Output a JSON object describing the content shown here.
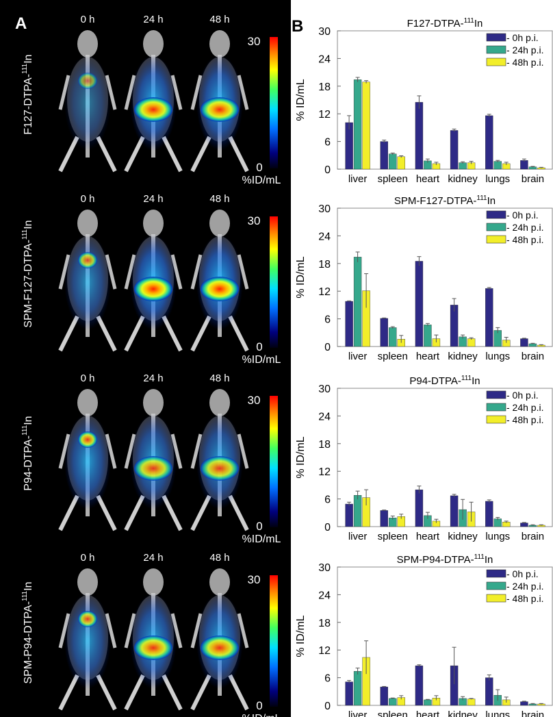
{
  "panel_a": {
    "label": "A",
    "times": [
      "0 h",
      "24 h",
      "48 h"
    ],
    "rows": [
      {
        "label_main": "F127-DTPA-",
        "label_sup": "111",
        "label_end": "In"
      },
      {
        "label_main": "SPM-F127-DTPA-",
        "label_sup": "111",
        "label_end": "In"
      },
      {
        "label_main": "P94-DTPA-",
        "label_sup": "111",
        "label_end": "In"
      },
      {
        "label_main": "SPM-P94-DTPA-",
        "label_sup": "111",
        "label_end": "In"
      }
    ],
    "colorbar": {
      "max": "30",
      "min": "0",
      "unit": "%ID/mL"
    },
    "colors": {
      "background": "#000000",
      "bone": "#d8d8d8"
    }
  },
  "panel_b": {
    "label": "B",
    "ylabel": "% ID/mL",
    "legend": [
      "- 0h p.i.",
      "- 24h p.i.",
      "- 48h p.i."
    ],
    "colors": [
      "#2e2a86",
      "#35a88c",
      "#f2ee2a"
    ],
    "grid": false,
    "legend_position": "top-right"
  },
  "chart_data": [
    {
      "type": "bar",
      "title_main": "F127-DTPA-",
      "title_sup": "111",
      "title_end": "In",
      "categories": [
        "liver",
        "spleen",
        "heart",
        "kidney",
        "lungs",
        "brain"
      ],
      "ylim": [
        0,
        30
      ],
      "yticks": [
        "0",
        "6",
        "12",
        "18",
        "24",
        "30"
      ],
      "series": [
        {
          "name": "- 0h p.i.",
          "values": [
            10.1,
            6.0,
            14.5,
            8.4,
            11.6,
            1.9
          ],
          "errors": [
            1.5,
            0.3,
            1.4,
            0.3,
            0.3,
            0.3
          ]
        },
        {
          "name": "- 24h p.i.",
          "values": [
            19.4,
            3.3,
            1.8,
            1.4,
            1.7,
            0.5
          ],
          "errors": [
            0.5,
            0.2,
            0.4,
            0.2,
            0.2,
            0.1
          ]
        },
        {
          "name": "- 48h p.i.",
          "values": [
            18.9,
            2.7,
            1.2,
            1.4,
            1.2,
            0.3
          ],
          "errors": [
            0.3,
            0.2,
            0.3,
            0.3,
            0.3,
            0.1
          ]
        }
      ]
    },
    {
      "type": "bar",
      "title_main": "SPM-F127-DTPA-",
      "title_sup": "111",
      "title_end": "In",
      "categories": [
        "liver",
        "spleen",
        "heart",
        "kidney",
        "lungs",
        "brain"
      ],
      "ylim": [
        0,
        30
      ],
      "yticks": [
        "0",
        "6",
        "12",
        "18",
        "24",
        "30"
      ],
      "series": [
        {
          "name": "- 0h p.i.",
          "values": [
            9.8,
            6.1,
            18.5,
            9.0,
            12.6,
            1.7
          ],
          "errors": [
            0.1,
            0.1,
            1.0,
            1.4,
            0.2,
            0.1
          ]
        },
        {
          "name": "- 24h p.i.",
          "values": [
            19.4,
            4.1,
            4.7,
            2.1,
            3.5,
            0.6
          ],
          "errors": [
            1.1,
            0.2,
            0.3,
            0.4,
            0.6,
            0.1
          ]
        },
        {
          "name": "- 48h p.i.",
          "values": [
            12.1,
            1.6,
            1.7,
            1.7,
            1.4,
            0.3
          ],
          "errors": [
            3.7,
            0.8,
            0.8,
            0.2,
            0.6,
            0.1
          ]
        }
      ]
    },
    {
      "type": "bar",
      "title_main": "P94-DTPA-",
      "title_sup": "111",
      "title_end": "In",
      "categories": [
        "liver",
        "spleen",
        "heart",
        "kidney",
        "lungs",
        "brain"
      ],
      "ylim": [
        0,
        30
      ],
      "yticks": [
        "0",
        "6",
        "12",
        "18",
        "24",
        "30"
      ],
      "series": [
        {
          "name": "- 0h p.i.",
          "values": [
            4.9,
            3.5,
            8.0,
            6.7,
            5.5,
            0.8
          ],
          "errors": [
            0.4,
            0.1,
            0.8,
            0.3,
            0.3,
            0.1
          ]
        },
        {
          "name": "- 24h p.i.",
          "values": [
            6.8,
            1.9,
            2.4,
            3.7,
            1.7,
            0.3
          ],
          "errors": [
            0.9,
            0.4,
            0.7,
            2.2,
            0.3,
            0.1
          ]
        },
        {
          "name": "- 48h p.i.",
          "values": [
            6.3,
            2.2,
            1.2,
            3.2,
            1.0,
            0.3
          ],
          "errors": [
            1.7,
            0.5,
            0.4,
            2.1,
            0.2,
            0.1
          ]
        }
      ]
    },
    {
      "type": "bar",
      "title_main": "SPM-P94-DTPA-",
      "title_sup": "111",
      "title_end": "In",
      "categories": [
        "liver",
        "spleen",
        "heart",
        "kidney",
        "lungs",
        "brain"
      ],
      "ylim": [
        0,
        30
      ],
      "yticks": [
        "0",
        "6",
        "12",
        "18",
        "24",
        "30"
      ],
      "series": [
        {
          "name": "- 0h p.i.",
          "values": [
            5.1,
            4.0,
            8.6,
            8.6,
            6.0,
            0.8
          ],
          "errors": [
            0.3,
            0.1,
            0.2,
            4.0,
            0.6,
            0.1
          ]
        },
        {
          "name": "- 24h p.i.",
          "values": [
            7.4,
            1.5,
            1.2,
            1.5,
            2.2,
            0.3
          ],
          "errors": [
            0.7,
            0.1,
            0.1,
            0.4,
            1.2,
            0.1
          ]
        },
        {
          "name": "- 48h p.i.",
          "values": [
            10.4,
            1.7,
            1.6,
            1.4,
            1.2,
            0.3
          ],
          "errors": [
            3.6,
            0.4,
            0.5,
            0.1,
            0.6,
            0.1
          ]
        }
      ]
    }
  ]
}
